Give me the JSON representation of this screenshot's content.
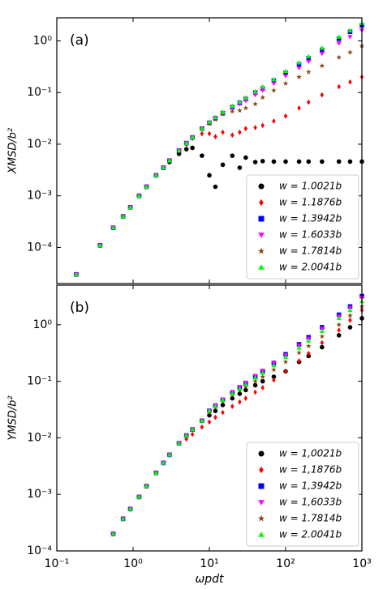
{
  "chart_data": [
    {
      "type": "scatter",
      "panel_label": "(a)",
      "ylabel": "XMSD/b²",
      "log_x": true,
      "log_y": true,
      "legend": "lower right",
      "xlim": [
        0.1,
        1000
      ],
      "ylim": [
        2e-05,
        2.8
      ],
      "yticks": [
        {
          "value": 0.0001,
          "label": "10⁻⁴"
        },
        {
          "value": 0.001,
          "label": "10⁻³"
        },
        {
          "value": 0.01,
          "label": "10⁻²"
        },
        {
          "value": 0.1,
          "label": "10⁻¹"
        },
        {
          "value": 1,
          "label": "10⁰"
        }
      ],
      "x": [
        0.18,
        0.37,
        0.55,
        0.74,
        0.92,
        1.2,
        1.5,
        2,
        2.5,
        3,
        4,
        5,
        6,
        8,
        10,
        12,
        15,
        20,
        25,
        30,
        40,
        50,
        70,
        100,
        150,
        200,
        300,
        500,
        700,
        1000
      ],
      "series": [
        {
          "name": "w = 1.0021b",
          "color": "#000000",
          "marker": "circle",
          "values": [
            3e-05,
            0.00011,
            0.00024,
            0.0004,
            0.0006,
            0.001,
            0.0015,
            0.0025,
            0.0035,
            0.0045,
            0.0065,
            0.008,
            0.0085,
            0.006,
            0.0025,
            0.0015,
            0.004,
            0.006,
            0.0035,
            0.0055,
            0.0045,
            0.0047,
            0.0046,
            0.0046,
            0.0046,
            0.0046,
            0.0046,
            0.0046,
            0.0046,
            0.0046
          ]
        },
        {
          "name": "w = 1.1876b",
          "color": "#ff0000",
          "marker": "diamond",
          "values": [
            3e-05,
            0.00011,
            0.00024,
            0.0004,
            0.0006,
            0.001,
            0.0015,
            0.0025,
            0.0035,
            0.0048,
            0.0075,
            0.01,
            0.013,
            0.016,
            0.016,
            0.014,
            0.017,
            0.015,
            0.017,
            0.02,
            0.021,
            0.023,
            0.028,
            0.035,
            0.05,
            0.065,
            0.09,
            0.13,
            0.16,
            0.2
          ]
        },
        {
          "name": "w = 1.3942b",
          "color": "#0000ff",
          "marker": "square",
          "values": [
            3e-05,
            0.00011,
            0.00024,
            0.0004,
            0.0006,
            0.001,
            0.0015,
            0.0025,
            0.0035,
            0.0048,
            0.0075,
            0.0105,
            0.0135,
            0.02,
            0.026,
            0.032,
            0.04,
            0.052,
            0.063,
            0.075,
            0.1,
            0.12,
            0.17,
            0.24,
            0.35,
            0.46,
            0.67,
            1.1,
            1.5,
            2.0
          ]
        },
        {
          "name": "w = 1.6033b",
          "color": "#ff00ff",
          "marker": "triangle-down",
          "values": [
            3e-05,
            0.00011,
            0.00024,
            0.0004,
            0.0006,
            0.001,
            0.0015,
            0.0025,
            0.0035,
            0.0048,
            0.0075,
            0.0105,
            0.0135,
            0.02,
            0.026,
            0.032,
            0.04,
            0.05,
            0.06,
            0.07,
            0.09,
            0.11,
            0.15,
            0.21,
            0.3,
            0.4,
            0.57,
            0.9,
            1.2,
            1.6
          ]
        },
        {
          "name": "w = 1.7814b",
          "color": "#8b4513",
          "marker": "star",
          "values": [
            3e-05,
            0.00011,
            0.00024,
            0.0004,
            0.0006,
            0.001,
            0.0015,
            0.0025,
            0.0035,
            0.0048,
            0.0075,
            0.0105,
            0.0135,
            0.02,
            0.025,
            0.03,
            0.038,
            0.043,
            0.045,
            0.05,
            0.06,
            0.08,
            0.11,
            0.15,
            0.2,
            0.25,
            0.33,
            0.48,
            0.6,
            0.8
          ]
        },
        {
          "name": "w = 2.0041b",
          "color": "#00ff00",
          "marker": "triangle-up",
          "values": [
            3e-05,
            0.00011,
            0.00024,
            0.0004,
            0.0006,
            0.001,
            0.0015,
            0.0025,
            0.0035,
            0.0048,
            0.0075,
            0.0105,
            0.0135,
            0.02,
            0.027,
            0.033,
            0.042,
            0.055,
            0.067,
            0.08,
            0.105,
            0.13,
            0.18,
            0.26,
            0.38,
            0.5,
            0.73,
            1.2,
            1.6,
            2.2
          ]
        }
      ]
    },
    {
      "type": "scatter",
      "panel_label": "(b)",
      "ylabel": "YMSD/b²",
      "xlabel": "ωpdt",
      "log_x": true,
      "log_y": true,
      "legend": "lower right",
      "xlim": [
        0.1,
        1000
      ],
      "ylim": [
        0.0001,
        5
      ],
      "xticks": [
        {
          "value": 0.1,
          "label": "10⁻¹"
        },
        {
          "value": 1,
          "label": "10⁰"
        },
        {
          "value": 10,
          "label": "10¹"
        },
        {
          "value": 100,
          "label": "10²"
        },
        {
          "value": 1000,
          "label": "10³"
        }
      ],
      "yticks": [
        {
          "value": 0.0001,
          "label": "10⁻⁴"
        },
        {
          "value": 0.001,
          "label": "10⁻³"
        },
        {
          "value": 0.01,
          "label": "10⁻²"
        },
        {
          "value": 0.1,
          "label": "10⁻¹"
        },
        {
          "value": 1,
          "label": "10⁰"
        }
      ],
      "x": [
        0.18,
        0.37,
        0.55,
        0.74,
        0.92,
        1.2,
        1.5,
        2,
        2.5,
        3,
        4,
        5,
        6,
        8,
        10,
        12,
        15,
        20,
        25,
        30,
        40,
        50,
        70,
        100,
        150,
        200,
        300,
        500,
        700,
        1000
      ],
      "series": [
        {
          "name": "w = 1,0021b",
          "color": "#000000",
          "marker": "circle",
          "values": [
            null,
            null,
            0.0002,
            0.00037,
            0.00055,
            0.0009,
            0.0014,
            0.0024,
            0.0036,
            0.005,
            0.008,
            0.011,
            0.014,
            0.02,
            0.025,
            0.03,
            0.038,
            0.05,
            0.06,
            0.07,
            0.085,
            0.1,
            0.12,
            0.15,
            0.22,
            0.28,
            0.4,
            0.65,
            0.9,
            1.3
          ]
        },
        {
          "name": "w = 1,1876b",
          "color": "#ff0000",
          "marker": "diamond",
          "values": [
            null,
            null,
            0.0002,
            0.00037,
            0.00055,
            0.0009,
            0.0014,
            0.0024,
            0.0036,
            0.005,
            0.008,
            0.0095,
            0.0115,
            0.0155,
            0.019,
            0.023,
            0.028,
            0.036,
            0.043,
            0.05,
            0.064,
            0.077,
            0.105,
            0.15,
            0.23,
            0.31,
            0.48,
            0.8,
            1.2,
            1.8
          ]
        },
        {
          "name": "w = 1,3942b",
          "color": "#0000ff",
          "marker": "square",
          "values": [
            null,
            null,
            0.0002,
            0.00037,
            0.00055,
            0.0009,
            0.0014,
            0.0024,
            0.0036,
            0.005,
            0.008,
            0.011,
            0.014,
            0.02,
            0.03,
            0.037,
            0.047,
            0.063,
            0.077,
            0.092,
            0.12,
            0.15,
            0.21,
            0.3,
            0.45,
            0.6,
            0.9,
            1.5,
            2.1,
            3.2
          ]
        },
        {
          "name": "w = 1,6033b",
          "color": "#ff00ff",
          "marker": "triangle-down",
          "values": [
            null,
            null,
            0.0002,
            0.00037,
            0.00055,
            0.0009,
            0.0014,
            0.0024,
            0.0036,
            0.005,
            0.008,
            0.011,
            0.014,
            0.02,
            0.03,
            0.037,
            0.048,
            0.065,
            0.08,
            0.095,
            0.125,
            0.155,
            0.21,
            0.29,
            0.43,
            0.57,
            0.85,
            1.4,
            2.0,
            3.0
          ]
        },
        {
          "name": "w = 1.7814b",
          "color": "#8b4513",
          "marker": "star",
          "values": [
            null,
            null,
            0.0002,
            0.00037,
            0.00055,
            0.0009,
            0.0014,
            0.0024,
            0.0036,
            0.005,
            0.008,
            0.011,
            0.014,
            0.02,
            0.028,
            0.034,
            0.043,
            0.056,
            0.068,
            0.08,
            0.1,
            0.12,
            0.16,
            0.22,
            0.32,
            0.42,
            0.62,
            1.0,
            1.45,
            2.1
          ]
        },
        {
          "name": "w = 2.0041b",
          "color": "#00ff00",
          "marker": "triangle-up",
          "values": [
            null,
            null,
            0.0002,
            0.00037,
            0.00055,
            0.0009,
            0.0014,
            0.0024,
            0.0036,
            0.005,
            0.008,
            0.011,
            0.014,
            0.02,
            0.03,
            0.036,
            0.046,
            0.061,
            0.074,
            0.088,
            0.115,
            0.14,
            0.19,
            0.265,
            0.39,
            0.52,
            0.77,
            1.3,
            1.8,
            2.6
          ]
        }
      ]
    }
  ]
}
